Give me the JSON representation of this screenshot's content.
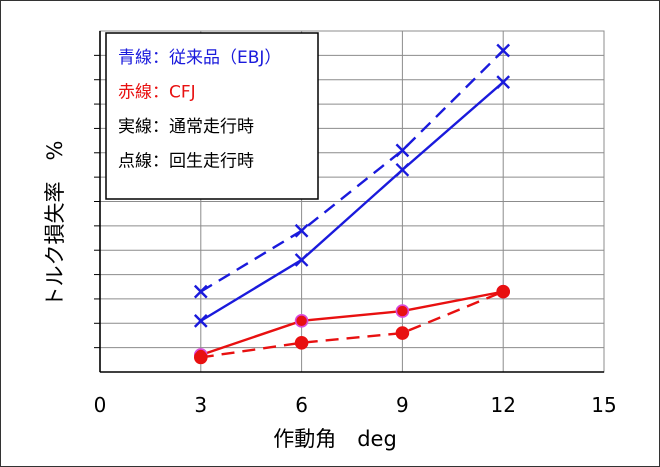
{
  "chart_data": {
    "type": "line",
    "xlabel": "作動角　deg",
    "ylabel": "トルク損失率　%",
    "xlim": [
      0,
      15
    ],
    "xticks": [
      "0",
      "3",
      "6",
      "9",
      "12",
      "15"
    ],
    "ylim": [
      0,
      14
    ],
    "y_units": "grid lines above the x-axis (no y tick labels are printed)",
    "grid": "horizontal and vertical, on",
    "legend_position": "top-left",
    "legend": [
      {
        "text": "青線：従来品（EBJ）",
        "color": "#1a1adc"
      },
      {
        "text": "赤線：CFJ",
        "color": "#e81010"
      },
      {
        "text": "実線：通常走行時",
        "color": "#000000"
      },
      {
        "text": "点線：回生走行時",
        "color": "#000000"
      }
    ],
    "series": [
      {
        "color": "#1a1adc",
        "style": "solid",
        "marker": "x",
        "x": [
          3,
          6,
          9,
          12
        ],
        "y": [
          2.1,
          4.6,
          8.3,
          11.9
        ]
      },
      {
        "color": "#1a1adc",
        "style": "dashed",
        "marker": "x",
        "x": [
          3,
          6,
          9,
          12
        ],
        "y": [
          3.3,
          5.8,
          9.1,
          13.2
        ]
      },
      {
        "color": "#e81010",
        "style": "solid",
        "marker": "circle",
        "x": [
          3,
          6,
          9,
          12
        ],
        "y": [
          0.7,
          2.1,
          2.5,
          3.3
        ]
      },
      {
        "color": "#e81010",
        "style": "dashed",
        "marker": "circle",
        "x": [
          3,
          6,
          9,
          12
        ],
        "y": [
          0.6,
          1.2,
          1.6,
          3.3
        ]
      }
    ]
  }
}
